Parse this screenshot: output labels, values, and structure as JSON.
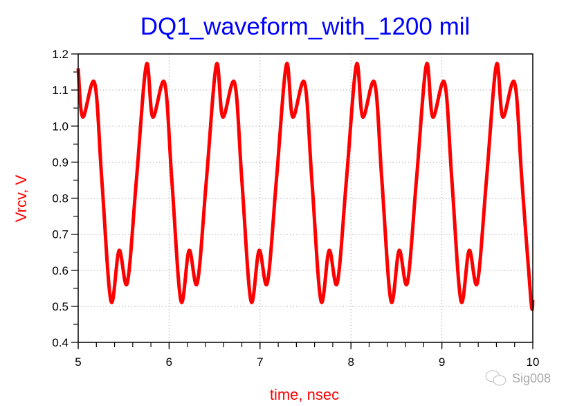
{
  "chart_data": {
    "type": "line",
    "title": "DQ1_waveform_with_1200 mil",
    "xlabel": "time, nsec",
    "ylabel": "Vrcv, V",
    "xlim": [
      5,
      10
    ],
    "ylim": [
      0.4,
      1.2
    ],
    "xticks": [
      5,
      6,
      7,
      8,
      9,
      10
    ],
    "yticks": [
      0.4,
      0.5,
      0.6,
      0.7,
      0.8,
      0.9,
      1.0,
      1.1,
      1.2
    ],
    "ytick_labels": [
      "0.4",
      "0.5",
      "0.6",
      "0.7",
      "0.8",
      "0.9",
      "1.0",
      "1.1",
      "1.2"
    ],
    "xtick_labels": [
      "5",
      "6",
      "7",
      "8",
      "9",
      "10"
    ],
    "x_minor_step": 0.2,
    "y_minor_step": 0.05,
    "grid": true,
    "series": [
      {
        "name": "Vrcv",
        "color": "#ff0000",
        "points": [
          [
            5.0,
            1.16
          ],
          [
            5.05,
            1.025
          ],
          [
            5.18,
            1.12
          ],
          [
            5.26,
            0.85
          ],
          [
            5.36,
            0.515
          ],
          [
            5.45,
            0.655
          ],
          [
            5.54,
            0.565
          ],
          [
            5.64,
            0.85
          ],
          [
            5.75,
            1.17
          ],
          [
            5.82,
            1.025
          ],
          [
            5.95,
            1.12
          ],
          [
            6.03,
            0.85
          ],
          [
            6.13,
            0.515
          ],
          [
            6.22,
            0.655
          ],
          [
            6.31,
            0.565
          ],
          [
            6.41,
            0.85
          ],
          [
            6.52,
            1.17
          ],
          [
            6.59,
            1.025
          ],
          [
            6.72,
            1.12
          ],
          [
            6.8,
            0.85
          ],
          [
            6.9,
            0.515
          ],
          [
            6.99,
            0.655
          ],
          [
            7.08,
            0.565
          ],
          [
            7.18,
            0.85
          ],
          [
            7.29,
            1.17
          ],
          [
            7.36,
            1.025
          ],
          [
            7.49,
            1.12
          ],
          [
            7.57,
            0.85
          ],
          [
            7.67,
            0.515
          ],
          [
            7.76,
            0.655
          ],
          [
            7.85,
            0.565
          ],
          [
            7.95,
            0.85
          ],
          [
            8.06,
            1.17
          ],
          [
            8.13,
            1.025
          ],
          [
            8.26,
            1.12
          ],
          [
            8.34,
            0.85
          ],
          [
            8.44,
            0.515
          ],
          [
            8.53,
            0.655
          ],
          [
            8.62,
            0.565
          ],
          [
            8.72,
            0.85
          ],
          [
            8.83,
            1.17
          ],
          [
            8.9,
            1.025
          ],
          [
            9.03,
            1.12
          ],
          [
            9.11,
            0.85
          ],
          [
            9.21,
            0.515
          ],
          [
            9.3,
            0.655
          ],
          [
            9.39,
            0.565
          ],
          [
            9.49,
            0.85
          ],
          [
            9.6,
            1.17
          ],
          [
            9.67,
            1.025
          ],
          [
            9.8,
            1.12
          ],
          [
            9.88,
            0.85
          ],
          [
            9.98,
            0.515
          ],
          [
            10.0,
            0.52
          ]
        ]
      }
    ]
  },
  "watermark": {
    "text": "Sig008",
    "icon": "wechat-icon"
  }
}
